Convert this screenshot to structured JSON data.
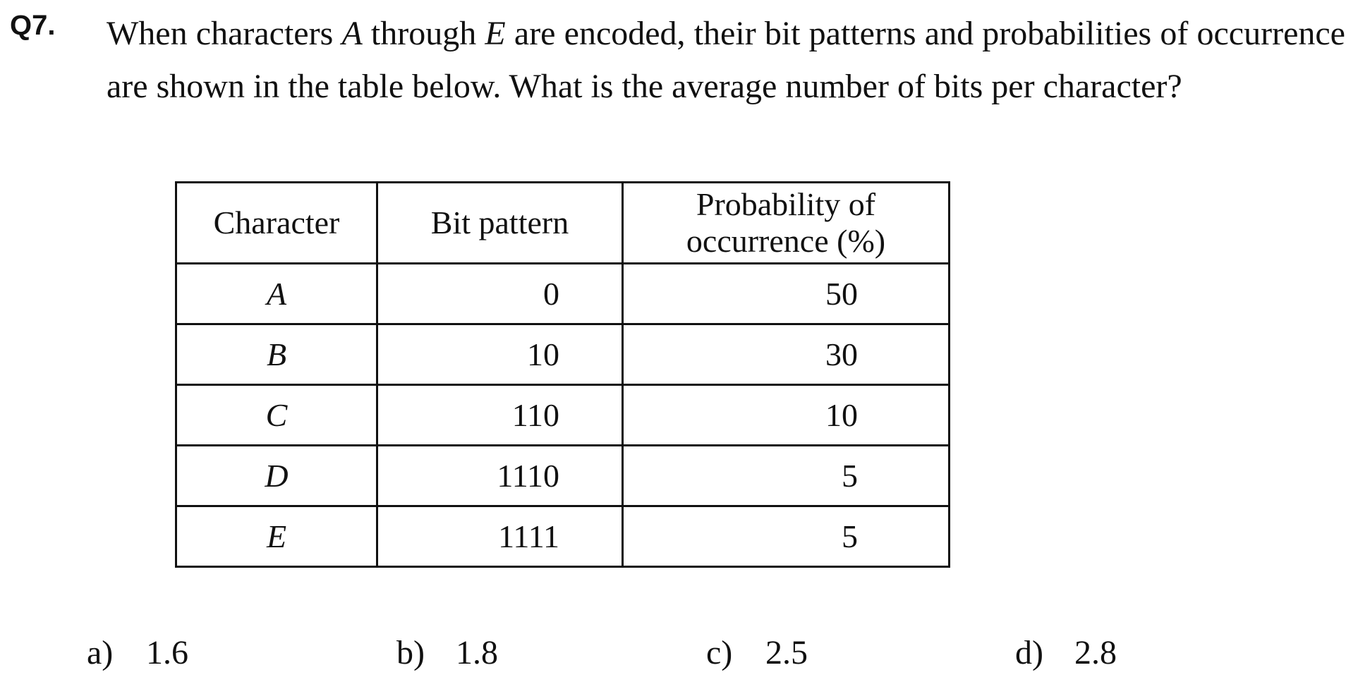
{
  "question": {
    "number": "Q7.",
    "text_parts": {
      "p1": "When characters ",
      "var1": "A",
      "p2": " through ",
      "var2": "E",
      "p3": " are encoded, their bit patterns and probabilities of occurrence are shown in the table below.  What is the average number of bits per character?"
    }
  },
  "table": {
    "headers": {
      "character": "Character",
      "bit_pattern": "Bit pattern",
      "probability_line1": "Probability of",
      "probability_line2": "occurrence (%)"
    },
    "rows": [
      {
        "character": "A",
        "bit_pattern": "0",
        "probability": "50"
      },
      {
        "character": "B",
        "bit_pattern": "10",
        "probability": "30"
      },
      {
        "character": "C",
        "bit_pattern": "110",
        "probability": "10"
      },
      {
        "character": "D",
        "bit_pattern": "1110",
        "probability": "5"
      },
      {
        "character": "E",
        "bit_pattern": "1111",
        "probability": "5"
      }
    ]
  },
  "choices": [
    {
      "letter": "a)",
      "value": "1.6"
    },
    {
      "letter": "b)",
      "value": "1.8"
    },
    {
      "letter": "c)",
      "value": "2.5"
    },
    {
      "letter": "d)",
      "value": "2.8"
    }
  ]
}
